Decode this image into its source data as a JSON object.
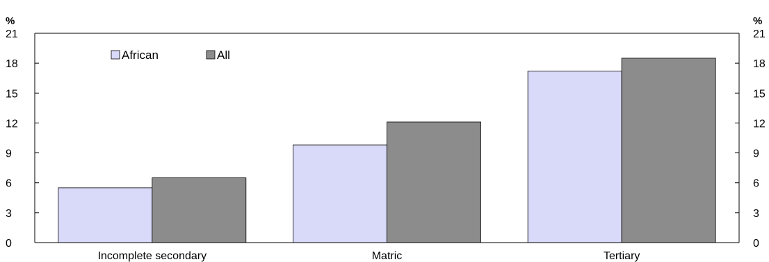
{
  "chart_data": {
    "type": "bar",
    "categories": [
      "Incomplete secondary",
      "Matric",
      "Tertiary"
    ],
    "series": [
      {
        "name": "African",
        "color": "#d9d9f9",
        "values": [
          5.5,
          9.8,
          17.2
        ]
      },
      {
        "name": "All",
        "color": "#8c8c8c",
        "values": [
          6.5,
          12.1,
          18.5
        ]
      }
    ],
    "y_unit_left": "%",
    "y_unit_right": "%",
    "ylim": [
      0,
      21
    ],
    "yticks": [
      "0",
      "3",
      "6",
      "9",
      "12",
      "15",
      "18",
      "21"
    ],
    "grid": false,
    "legend_position": "top-left",
    "title": "",
    "xlabel": "",
    "ylabel": ""
  }
}
